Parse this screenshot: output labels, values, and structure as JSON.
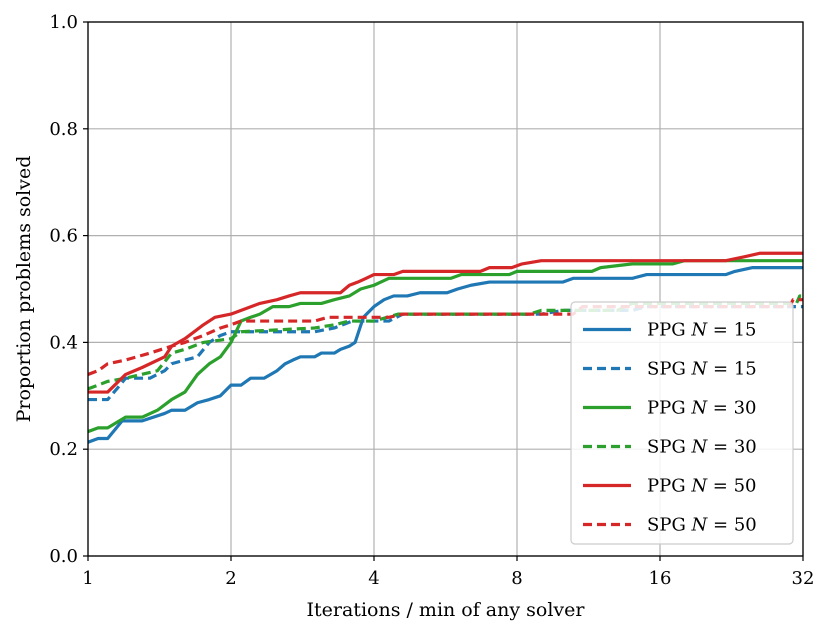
{
  "chart_data": {
    "type": "line",
    "title": "",
    "xlabel": "Iterations / min of any solver",
    "ylabel": "Proportion problems solved",
    "xscale": "log2",
    "xlim": [
      1,
      32
    ],
    "ylim": [
      0.0,
      1.0
    ],
    "xticks": [
      1,
      2,
      4,
      8,
      16,
      32
    ],
    "xtick_labels": [
      "1",
      "2",
      "4",
      "8",
      "16",
      "32"
    ],
    "yticks": [
      0.0,
      0.2,
      0.4,
      0.6,
      0.8,
      1.0
    ],
    "ytick_labels": [
      "0.0",
      "0.2",
      "0.4",
      "0.6",
      "0.8",
      "1.0"
    ],
    "grid": true,
    "legend_position": "lower-right",
    "series": [
      {
        "name": "PPG N = 15",
        "label_prefix": "PPG",
        "label_n": "15",
        "color": "#1f77b4",
        "dash": "solid",
        "points": [
          [
            1,
            0.213
          ],
          [
            1.05,
            0.22
          ],
          [
            1.1,
            0.22
          ],
          [
            1.18,
            0.253
          ],
          [
            1.3,
            0.253
          ],
          [
            1.45,
            0.267
          ],
          [
            1.5,
            0.273
          ],
          [
            1.6,
            0.273
          ],
          [
            1.7,
            0.287
          ],
          [
            1.8,
            0.293
          ],
          [
            1.9,
            0.3
          ],
          [
            2.0,
            0.32
          ],
          [
            2.1,
            0.32
          ],
          [
            2.2,
            0.333
          ],
          [
            2.35,
            0.333
          ],
          [
            2.5,
            0.347
          ],
          [
            2.6,
            0.36
          ],
          [
            2.7,
            0.367
          ],
          [
            2.8,
            0.373
          ],
          [
            3.0,
            0.373
          ],
          [
            3.1,
            0.38
          ],
          [
            3.3,
            0.38
          ],
          [
            3.4,
            0.387
          ],
          [
            3.55,
            0.393
          ],
          [
            3.65,
            0.4
          ],
          [
            3.8,
            0.447
          ],
          [
            4.0,
            0.467
          ],
          [
            4.2,
            0.48
          ],
          [
            4.4,
            0.487
          ],
          [
            4.7,
            0.487
          ],
          [
            5.0,
            0.493
          ],
          [
            5.7,
            0.493
          ],
          [
            6.0,
            0.5
          ],
          [
            6.4,
            0.507
          ],
          [
            7.0,
            0.513
          ],
          [
            10.0,
            0.513
          ],
          [
            10.5,
            0.52
          ],
          [
            14.0,
            0.52
          ],
          [
            15.0,
            0.527
          ],
          [
            22.0,
            0.527
          ],
          [
            23.0,
            0.533
          ],
          [
            25.0,
            0.54
          ],
          [
            32.0,
            0.54
          ]
        ]
      },
      {
        "name": "SPG N = 15",
        "label_prefix": "SPG",
        "label_n": "15",
        "color": "#1f77b4",
        "dash": "dashed",
        "points": [
          [
            1,
            0.293
          ],
          [
            1.1,
            0.293
          ],
          [
            1.15,
            0.313
          ],
          [
            1.2,
            0.333
          ],
          [
            1.35,
            0.333
          ],
          [
            1.45,
            0.347
          ],
          [
            1.5,
            0.36
          ],
          [
            1.6,
            0.367
          ],
          [
            1.7,
            0.373
          ],
          [
            1.8,
            0.4
          ],
          [
            1.9,
            0.413
          ],
          [
            2.0,
            0.42
          ],
          [
            3.0,
            0.42
          ],
          [
            3.3,
            0.427
          ],
          [
            3.6,
            0.44
          ],
          [
            4.3,
            0.44
          ],
          [
            4.6,
            0.453
          ],
          [
            9.0,
            0.453
          ],
          [
            10.0,
            0.46
          ],
          [
            14.0,
            0.46
          ],
          [
            15.0,
            0.467
          ],
          [
            32.0,
            0.467
          ]
        ]
      },
      {
        "name": "PPG N = 30",
        "label_prefix": "PPG",
        "label_n": "30",
        "color": "#2ca02c",
        "dash": "solid",
        "points": [
          [
            1,
            0.233
          ],
          [
            1.05,
            0.24
          ],
          [
            1.1,
            0.24
          ],
          [
            1.2,
            0.26
          ],
          [
            1.3,
            0.26
          ],
          [
            1.4,
            0.273
          ],
          [
            1.5,
            0.293
          ],
          [
            1.6,
            0.307
          ],
          [
            1.7,
            0.34
          ],
          [
            1.8,
            0.36
          ],
          [
            1.9,
            0.373
          ],
          [
            2.0,
            0.4
          ],
          [
            2.1,
            0.44
          ],
          [
            2.2,
            0.447
          ],
          [
            2.3,
            0.453
          ],
          [
            2.45,
            0.467
          ],
          [
            2.65,
            0.467
          ],
          [
            2.8,
            0.473
          ],
          [
            3.1,
            0.473
          ],
          [
            3.3,
            0.48
          ],
          [
            3.55,
            0.487
          ],
          [
            3.75,
            0.5
          ],
          [
            4.0,
            0.507
          ],
          [
            4.3,
            0.52
          ],
          [
            5.8,
            0.52
          ],
          [
            6.1,
            0.527
          ],
          [
            7.7,
            0.527
          ],
          [
            8.0,
            0.533
          ],
          [
            11.5,
            0.533
          ],
          [
            12.0,
            0.54
          ],
          [
            14.0,
            0.547
          ],
          [
            17.0,
            0.547
          ],
          [
            18.0,
            0.553
          ],
          [
            32.0,
            0.553
          ]
        ]
      },
      {
        "name": "SPG N = 30",
        "label_prefix": "SPG",
        "label_n": "30",
        "color": "#2ca02c",
        "dash": "dashed",
        "points": [
          [
            1,
            0.313
          ],
          [
            1.05,
            0.32
          ],
          [
            1.1,
            0.327
          ],
          [
            1.2,
            0.333
          ],
          [
            1.4,
            0.347
          ],
          [
            1.5,
            0.38
          ],
          [
            1.6,
            0.387
          ],
          [
            1.75,
            0.4
          ],
          [
            2.0,
            0.407
          ],
          [
            2.1,
            0.42
          ],
          [
            3.0,
            0.427
          ],
          [
            3.3,
            0.433
          ],
          [
            3.55,
            0.44
          ],
          [
            4.0,
            0.44
          ],
          [
            4.5,
            0.453
          ],
          [
            8.5,
            0.453
          ],
          [
            9.0,
            0.46
          ],
          [
            13.0,
            0.46
          ],
          [
            14.0,
            0.473
          ],
          [
            31.0,
            0.473
          ],
          [
            31.5,
            0.487
          ],
          [
            32.0,
            0.487
          ]
        ]
      },
      {
        "name": "PPG N = 50",
        "label_prefix": "PPG",
        "label_n": "50",
        "color": "#d62728",
        "dash": "solid",
        "points": [
          [
            1,
            0.307
          ],
          [
            1.1,
            0.307
          ],
          [
            1.2,
            0.34
          ],
          [
            1.3,
            0.353
          ],
          [
            1.45,
            0.373
          ],
          [
            1.5,
            0.393
          ],
          [
            1.6,
            0.407
          ],
          [
            1.75,
            0.433
          ],
          [
            1.85,
            0.447
          ],
          [
            2.0,
            0.453
          ],
          [
            2.1,
            0.46
          ],
          [
            2.3,
            0.473
          ],
          [
            2.5,
            0.48
          ],
          [
            2.65,
            0.487
          ],
          [
            2.8,
            0.493
          ],
          [
            3.4,
            0.493
          ],
          [
            3.55,
            0.507
          ],
          [
            3.7,
            0.513
          ],
          [
            3.85,
            0.52
          ],
          [
            4.0,
            0.527
          ],
          [
            4.4,
            0.527
          ],
          [
            4.6,
            0.533
          ],
          [
            6.7,
            0.533
          ],
          [
            7.0,
            0.54
          ],
          [
            7.8,
            0.54
          ],
          [
            8.2,
            0.547
          ],
          [
            9.0,
            0.553
          ],
          [
            22.0,
            0.553
          ],
          [
            24.0,
            0.56
          ],
          [
            26.0,
            0.567
          ],
          [
            32.0,
            0.567
          ]
        ]
      },
      {
        "name": "SPG N = 50",
        "label_prefix": "SPG",
        "label_n": "50",
        "color": "#d62728",
        "dash": "dashed",
        "points": [
          [
            1,
            0.34
          ],
          [
            1.05,
            0.347
          ],
          [
            1.1,
            0.36
          ],
          [
            1.2,
            0.367
          ],
          [
            1.35,
            0.38
          ],
          [
            1.5,
            0.393
          ],
          [
            1.6,
            0.4
          ],
          [
            1.75,
            0.413
          ],
          [
            1.9,
            0.427
          ],
          [
            2.0,
            0.433
          ],
          [
            2.1,
            0.44
          ],
          [
            3.0,
            0.44
          ],
          [
            3.2,
            0.447
          ],
          [
            4.3,
            0.447
          ],
          [
            4.6,
            0.453
          ],
          [
            10.5,
            0.453
          ],
          [
            11.0,
            0.467
          ],
          [
            30.0,
            0.467
          ],
          [
            30.5,
            0.48
          ],
          [
            32.0,
            0.48
          ]
        ]
      }
    ]
  }
}
